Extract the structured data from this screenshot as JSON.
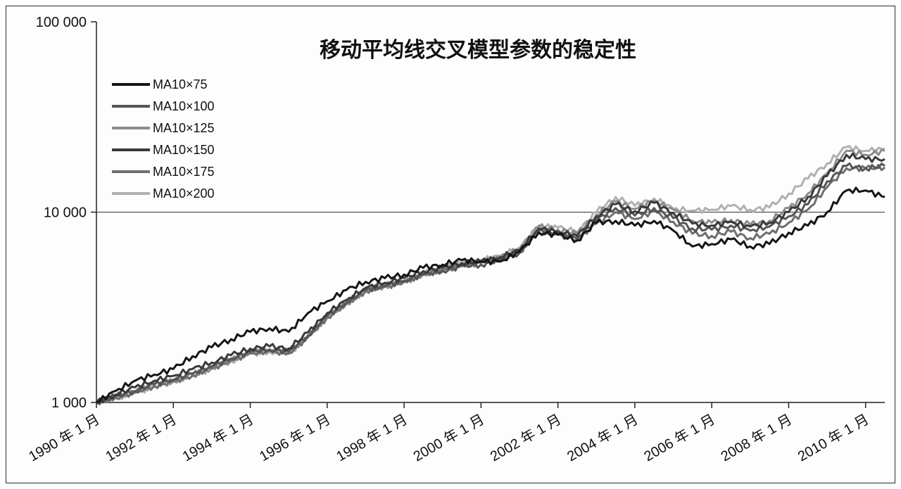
{
  "chart_data": {
    "type": "line",
    "title": "移动平均线交叉模型参数的稳定性",
    "xlabel": "",
    "ylabel": "",
    "yscale": "log",
    "ylim": [
      1000,
      100000
    ],
    "xlim": [
      1990.0,
      2010.5
    ],
    "grid": "horizontal at 10000",
    "legend_position": "top-left",
    "yticks": [
      {
        "value": 1000,
        "label": "1 000"
      },
      {
        "value": 10000,
        "label": "10 000"
      },
      {
        "value": 100000,
        "label": "100 000"
      }
    ],
    "xticks": [
      {
        "value": 1990,
        "label": "1990 年 1 月"
      },
      {
        "value": 1992,
        "label": "1992 年 1 月"
      },
      {
        "value": 1994,
        "label": "1994 年 1 月"
      },
      {
        "value": 1996,
        "label": "1996 年 1 月"
      },
      {
        "value": 1998,
        "label": "1998 年 1 月"
      },
      {
        "value": 2000,
        "label": "2000 年 1 月"
      },
      {
        "value": 2002,
        "label": "2002 年 1 月"
      },
      {
        "value": 2004,
        "label": "2004 年 1 月"
      },
      {
        "value": 2006,
        "label": "2006 年 1 月"
      },
      {
        "value": 2008,
        "label": "2008 年 1 月"
      },
      {
        "value": 2010,
        "label": "2010 年 1 月"
      }
    ],
    "x": [
      1990.0,
      1990.5,
      1991.0,
      1991.5,
      1992.0,
      1992.5,
      1993.0,
      1993.5,
      1994.0,
      1994.5,
      1995.0,
      1995.5,
      1996.0,
      1996.5,
      1997.0,
      1997.5,
      1998.0,
      1998.5,
      1999.0,
      1999.5,
      2000.0,
      2000.5,
      2001.0,
      2001.5,
      2002.0,
      2002.5,
      2003.0,
      2003.5,
      2004.0,
      2004.5,
      2005.0,
      2005.5,
      2006.0,
      2006.5,
      2007.0,
      2007.5,
      2008.0,
      2008.5,
      2009.0,
      2009.5,
      2010.0,
      2010.5
    ],
    "series": [
      {
        "name": "MA10×75",
        "color": "#151515",
        "values": [
          1000,
          1150,
          1300,
          1400,
          1500,
          1750,
          1950,
          2150,
          2350,
          2450,
          2350,
          2950,
          3400,
          3900,
          4300,
          4500,
          4700,
          5100,
          5300,
          5600,
          5500,
          5500,
          6200,
          7800,
          7600,
          7100,
          8800,
          9000,
          8500,
          9000,
          8000,
          6600,
          6800,
          7200,
          6600,
          6800,
          7800,
          8500,
          10000,
          13000,
          13000,
          12000
        ]
      },
      {
        "name": "MA10×100",
        "color": "#555555",
        "values": [
          1000,
          1080,
          1150,
          1250,
          1320,
          1420,
          1550,
          1700,
          1850,
          1900,
          1850,
          2250,
          2850,
          3350,
          3900,
          4100,
          4350,
          4700,
          4900,
          5200,
          5300,
          5600,
          6100,
          8000,
          7700,
          7300,
          9100,
          10500,
          9600,
          10500,
          9300,
          8200,
          8100,
          8500,
          8000,
          8400,
          9500,
          11000,
          14500,
          17500,
          17000,
          17500
        ]
      },
      {
        "name": "MA10×125",
        "color": "#8c8c8c",
        "values": [
          1000,
          1070,
          1140,
          1230,
          1300,
          1400,
          1520,
          1680,
          1830,
          1880,
          1830,
          2220,
          2820,
          3300,
          3850,
          4100,
          4300,
          4700,
          5000,
          5300,
          5500,
          5800,
          6400,
          8400,
          8100,
          7700,
          9700,
          11400,
          10400,
          11500,
          10300,
          9000,
          8800,
          9100,
          8600,
          9000,
          10500,
          12500,
          16000,
          21000,
          20000,
          21000
        ]
      },
      {
        "name": "MA10×150",
        "color": "#3a3a3a",
        "values": [
          1000,
          1100,
          1200,
          1300,
          1380,
          1500,
          1620,
          1770,
          1920,
          1970,
          1920,
          2330,
          2950,
          3450,
          4000,
          4250,
          4500,
          4900,
          5100,
          5400,
          5500,
          5800,
          6300,
          8200,
          7900,
          7500,
          9500,
          11000,
          10100,
          11200,
          9900,
          8700,
          8500,
          8900,
          8400,
          8800,
          10000,
          12000,
          15500,
          20000,
          19000,
          19000
        ]
      },
      {
        "name": "MA10×175",
        "color": "#6e6e6e",
        "values": [
          1000,
          1060,
          1130,
          1220,
          1290,
          1390,
          1510,
          1660,
          1810,
          1860,
          1810,
          2200,
          2800,
          3300,
          3850,
          4050,
          4300,
          4700,
          4950,
          5250,
          5400,
          5700,
          6200,
          7900,
          7600,
          7200,
          8700,
          10000,
          9200,
          10100,
          8900,
          7700,
          7500,
          7900,
          7300,
          7700,
          8800,
          10300,
          13500,
          17000,
          17000,
          17200
        ]
      },
      {
        "name": "MA10×200",
        "color": "#b0b0b0",
        "values": [
          1000,
          1050,
          1120,
          1210,
          1280,
          1380,
          1500,
          1650,
          1800,
          1850,
          1800,
          2200,
          2800,
          3300,
          3900,
          4150,
          4350,
          4750,
          5050,
          5400,
          5600,
          5900,
          6500,
          8500,
          8300,
          7900,
          10000,
          12000,
          10800,
          11800,
          10400,
          10200,
          10300,
          10800,
          10300,
          10600,
          12500,
          15000,
          18000,
          22000,
          21000,
          21500
        ]
      }
    ]
  }
}
